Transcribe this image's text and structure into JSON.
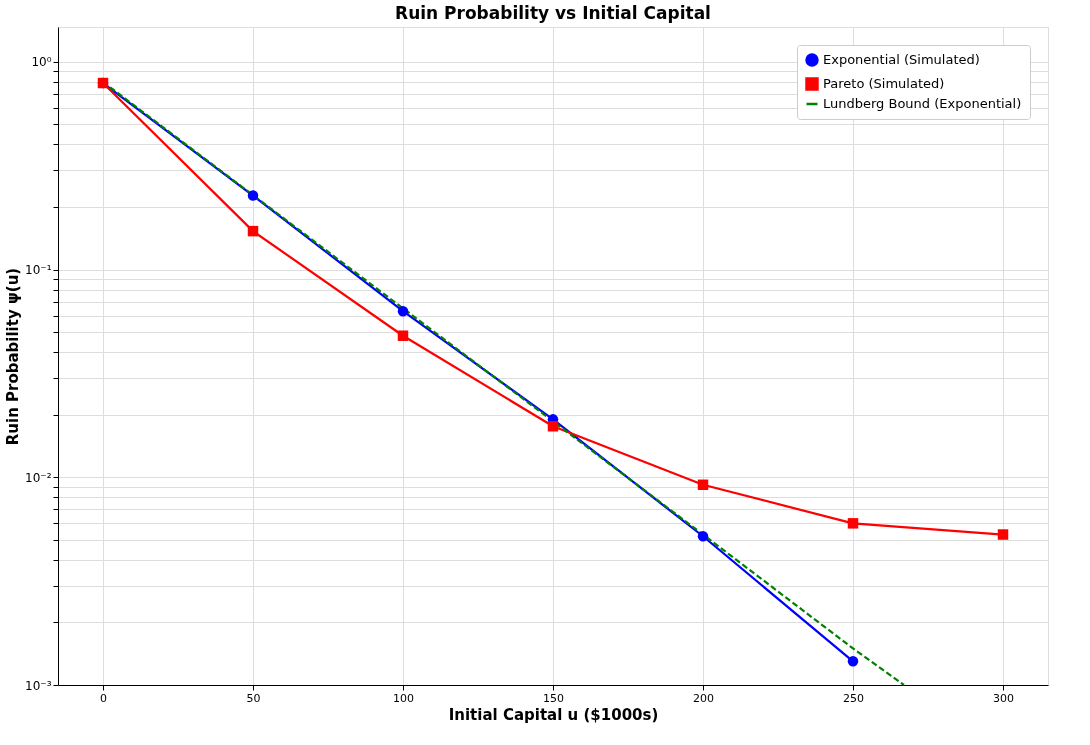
{
  "chart_data": {
    "type": "line",
    "title": "Ruin Probability vs Initial Capital",
    "xlabel": "Initial Capital u ($1000s)",
    "ylabel": "Ruin Probability ψ(u)",
    "x": [
      0,
      50,
      100,
      150,
      200,
      250,
      300
    ],
    "series": [
      {
        "name": "Exponential (Simulated)",
        "color": "#0000ff",
        "marker": "circle",
        "line_style": "solid",
        "values": [
          0.79,
          0.227,
          0.063,
          0.019,
          0.0052,
          0.0013,
          null
        ]
      },
      {
        "name": "Pareto (Simulated)",
        "color": "#ff0000",
        "marker": "square",
        "line_style": "solid",
        "values": [
          0.79,
          0.153,
          0.048,
          0.0176,
          0.0092,
          0.006,
          0.0053
        ]
      },
      {
        "name": "Lundberg Bound (Exponential)",
        "color": "#008000",
        "marker": "none",
        "line_style": "dashed",
        "x": [
          0,
          50,
          100,
          150,
          200,
          250,
          267
        ],
        "values": [
          0.8,
          0.228,
          0.065,
          0.0186,
          0.0053,
          0.0015,
          0.001
        ]
      }
    ],
    "log": "y",
    "xlim": [
      -15,
      315
    ],
    "xticks": [
      0,
      50,
      100,
      150,
      200,
      250,
      300
    ],
    "ylim": [
      0.001,
      1.47
    ],
    "yticks": [
      {
        "value": 0.001,
        "label": "10⁻³"
      },
      {
        "value": 0.01,
        "label": "10⁻²"
      },
      {
        "value": 0.1,
        "label": "10⁻¹"
      },
      {
        "value": 1,
        "label": "10⁰"
      },
      {
        "value": 0.002,
        "label": null
      },
      {
        "value": 0.003,
        "label": null
      },
      {
        "value": 0.004,
        "label": null
      },
      {
        "value": 0.005,
        "label": null
      },
      {
        "value": 0.006,
        "label": null
      },
      {
        "value": 0.007,
        "label": null
      },
      {
        "value": 0.008,
        "label": null
      },
      {
        "value": 0.009,
        "label": null
      },
      {
        "value": 0.02,
        "label": null
      },
      {
        "value": 0.03,
        "label": null
      },
      {
        "value": 0.04,
        "label": null
      },
      {
        "value": 0.05,
        "label": null
      },
      {
        "value": 0.06,
        "label": null
      },
      {
        "value": 0.07,
        "label": null
      },
      {
        "value": 0.08,
        "label": null
      },
      {
        "value": 0.09,
        "label": null
      },
      {
        "value": 0.2,
        "label": null
      },
      {
        "value": 0.3,
        "label": null
      },
      {
        "value": 0.4,
        "label": null
      },
      {
        "value": 0.5,
        "label": null
      },
      {
        "value": 0.6,
        "label": null
      },
      {
        "value": 0.7,
        "label": null
      },
      {
        "value": 0.8,
        "label": null
      },
      {
        "value": 0.9,
        "label": null
      }
    ],
    "grid": true,
    "legend": "top right"
  }
}
